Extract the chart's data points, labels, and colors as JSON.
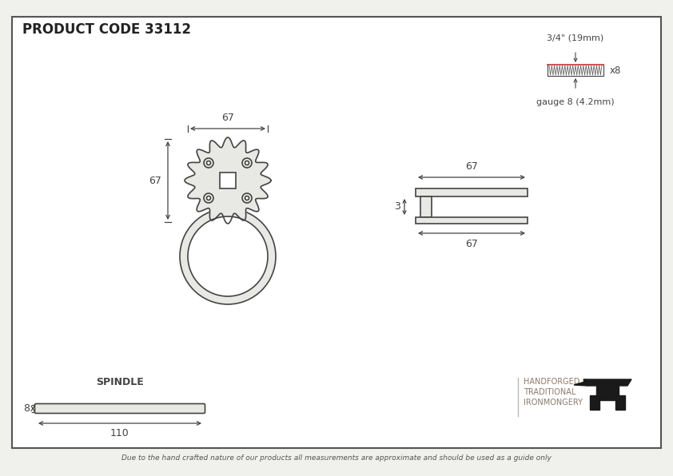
{
  "title": "PRODUCT CODE 33112",
  "bg_color": "#f0f0ec",
  "border_color": "#555555",
  "drawing_color": "#444444",
  "screw_label_top": "3/4\" (19mm)",
  "screw_label_bottom": "gauge 8 (4.2mm)",
  "screw_x8": "x8",
  "spindle_label": "SPINDLE",
  "brand_line1": "HANDFORGED",
  "brand_line2": "TRADITIONAL",
  "brand_line3": "IRONMONGERY",
  "footer": "Due to the hand crafted nature of our products all measurements are approximate and should be used as a guide only",
  "dim_67_h": "67",
  "dim_67_w": "67",
  "dim_110": "110",
  "dim_8": "8",
  "dim_3": "3",
  "dim_67_side_top": "67",
  "dim_67_side_bot": "67"
}
